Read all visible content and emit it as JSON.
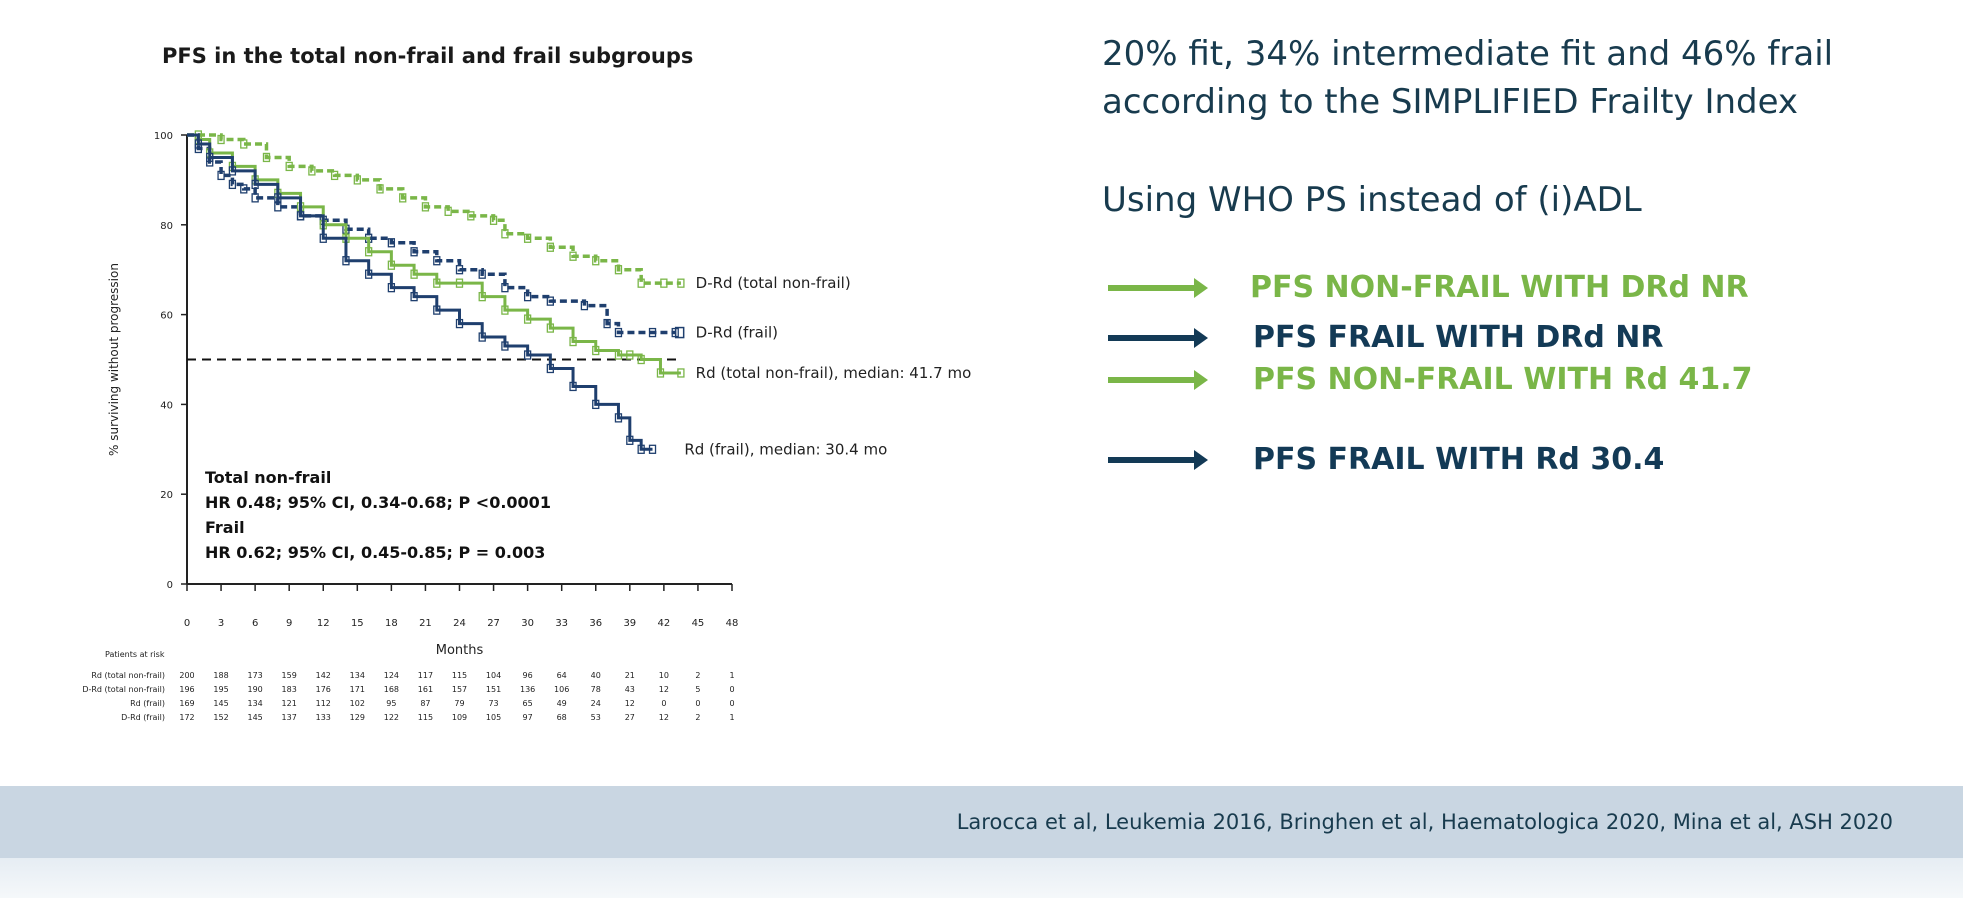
{
  "slide": {
    "headline_line1": "20% fit, 34% intermediate fit and 46% frail",
    "headline_line2": "according to the SIMPLIFIED Frailty Index",
    "subline": "Using WHO PS instead of (i)ADL",
    "findings": [
      {
        "text": "PFS NON-FRAIL WITH DRd NR",
        "color": "#7ab648"
      },
      {
        "text": "PFS FRAIL WITH DRd NR",
        "color": "#133a56"
      },
      {
        "text": "PFS NON-FRAIL WITH Rd 41.7",
        "color": "#7ab648"
      },
      {
        "text": "PFS FRAIL WITH Rd 30.4",
        "color": "#133a56"
      }
    ],
    "reference": "Larocca et al, Leukemia 2016, Bringhen et al, Haematologica 2020, Mina et al, ASH 2020"
  },
  "chart_data": {
    "type": "line",
    "title": "PFS in the total non-frail and frail subgroups",
    "xlabel": "Months",
    "ylabel": "% surviving without progression",
    "xlim": [
      0,
      48
    ],
    "ylim": [
      0,
      100
    ],
    "x_ticks": [
      0,
      3,
      6,
      9,
      12,
      15,
      18,
      21,
      24,
      27,
      30,
      33,
      36,
      39,
      42,
      45,
      48
    ],
    "y_ticks": [
      0,
      20,
      40,
      60,
      80,
      100
    ],
    "reference_line_y": 50,
    "colors": {
      "non_frail": "#7ab648",
      "frail": "#1f3f6e"
    },
    "series": [
      {
        "name": "D-Rd (total non-frail)",
        "label": "D-Rd (total non-frail)",
        "color_key": "non_frail",
        "style": "dashed",
        "x": [
          0,
          1,
          3,
          5,
          7,
          9,
          11,
          13,
          15,
          17,
          19,
          21,
          23,
          25,
          27,
          28,
          30,
          32,
          34,
          36,
          38,
          40,
          42,
          43.5
        ],
        "y": [
          100,
          100,
          99,
          98,
          95,
          93,
          92,
          91,
          90,
          88,
          86,
          84,
          83,
          82,
          81,
          78,
          77,
          75,
          73,
          72,
          70,
          67,
          67,
          67
        ]
      },
      {
        "name": "D-Rd (frail)",
        "label": "D-Rd (frail)",
        "color_key": "frail",
        "style": "dashed",
        "x": [
          0,
          1,
          2,
          3,
          4,
          5,
          6,
          8,
          10,
          12,
          14,
          16,
          18,
          20,
          22,
          24,
          26,
          28,
          30,
          32,
          35,
          37,
          38,
          41,
          43
        ],
        "y": [
          100,
          97,
          94,
          91,
          89,
          88,
          86,
          84,
          82,
          81,
          79,
          77,
          76,
          74,
          72,
          70,
          69,
          66,
          64,
          63,
          62,
          58,
          56,
          56,
          56
        ]
      },
      {
        "name": "Rd (total non-frail)",
        "label": "Rd (total non-frail), median: 41.7 mo",
        "color_key": "non_frail",
        "style": "solid",
        "x": [
          0,
          1,
          2,
          4,
          6,
          8,
          10,
          12,
          14,
          16,
          18,
          20,
          22,
          24,
          26,
          28,
          30,
          32,
          34,
          36,
          38,
          39,
          40,
          41.7,
          43.5
        ],
        "y": [
          100,
          99,
          96,
          93,
          90,
          87,
          84,
          80,
          77,
          74,
          71,
          69,
          67,
          67,
          64,
          61,
          59,
          57,
          54,
          52,
          51,
          51,
          50,
          47,
          47
        ]
      },
      {
        "name": "Rd (frail)",
        "label": "Rd (frail), median: 30.4 mo",
        "color_key": "frail",
        "style": "solid",
        "x": [
          0,
          1,
          2,
          4,
          6,
          8,
          10,
          12,
          14,
          16,
          18,
          20,
          22,
          24,
          26,
          28,
          30,
          32,
          34,
          36,
          38,
          39,
          40,
          41
        ],
        "y": [
          100,
          98,
          95,
          92,
          89,
          86,
          82,
          77,
          72,
          69,
          66,
          64,
          61,
          58,
          55,
          53,
          51,
          48,
          44,
          40,
          37,
          32,
          30,
          30
        ]
      }
    ],
    "hr_text": {
      "nonfrail_heading": "Total non-frail",
      "nonfrail_hr": "HR 0.48; 95% CI, 0.34-0.68; P <0.0001",
      "frail_heading": "Frail",
      "frail_hr": "HR 0.62; 95% CI, 0.45-0.85; P = 0.003"
    },
    "risk_table": {
      "title": "Patients at risk",
      "rows": [
        {
          "label": "Rd (total non-frail)",
          "values": [
            "200",
            "188",
            "173",
            "159",
            "142",
            "134",
            "124",
            "117",
            "115",
            "104",
            "96",
            "64",
            "40",
            "21",
            "10",
            "2",
            "1"
          ]
        },
        {
          "label": "D-Rd (total non-frail)",
          "values": [
            "196",
            "195",
            "190",
            "183",
            "176",
            "171",
            "168",
            "161",
            "157",
            "151",
            "136",
            "106",
            "78",
            "43",
            "12",
            "5",
            "0"
          ]
        },
        {
          "label": "Rd (frail)",
          "values": [
            "169",
            "145",
            "134",
            "121",
            "112",
            "102",
            "95",
            "87",
            "79",
            "73",
            "65",
            "49",
            "24",
            "12",
            "0",
            "0",
            "0"
          ]
        },
        {
          "label": "D-Rd (frail)",
          "values": [
            "172",
            "152",
            "145",
            "137",
            "133",
            "129",
            "122",
            "115",
            "109",
            "105",
            "97",
            "68",
            "53",
            "27",
            "12",
            "2",
            "1"
          ]
        }
      ]
    }
  }
}
